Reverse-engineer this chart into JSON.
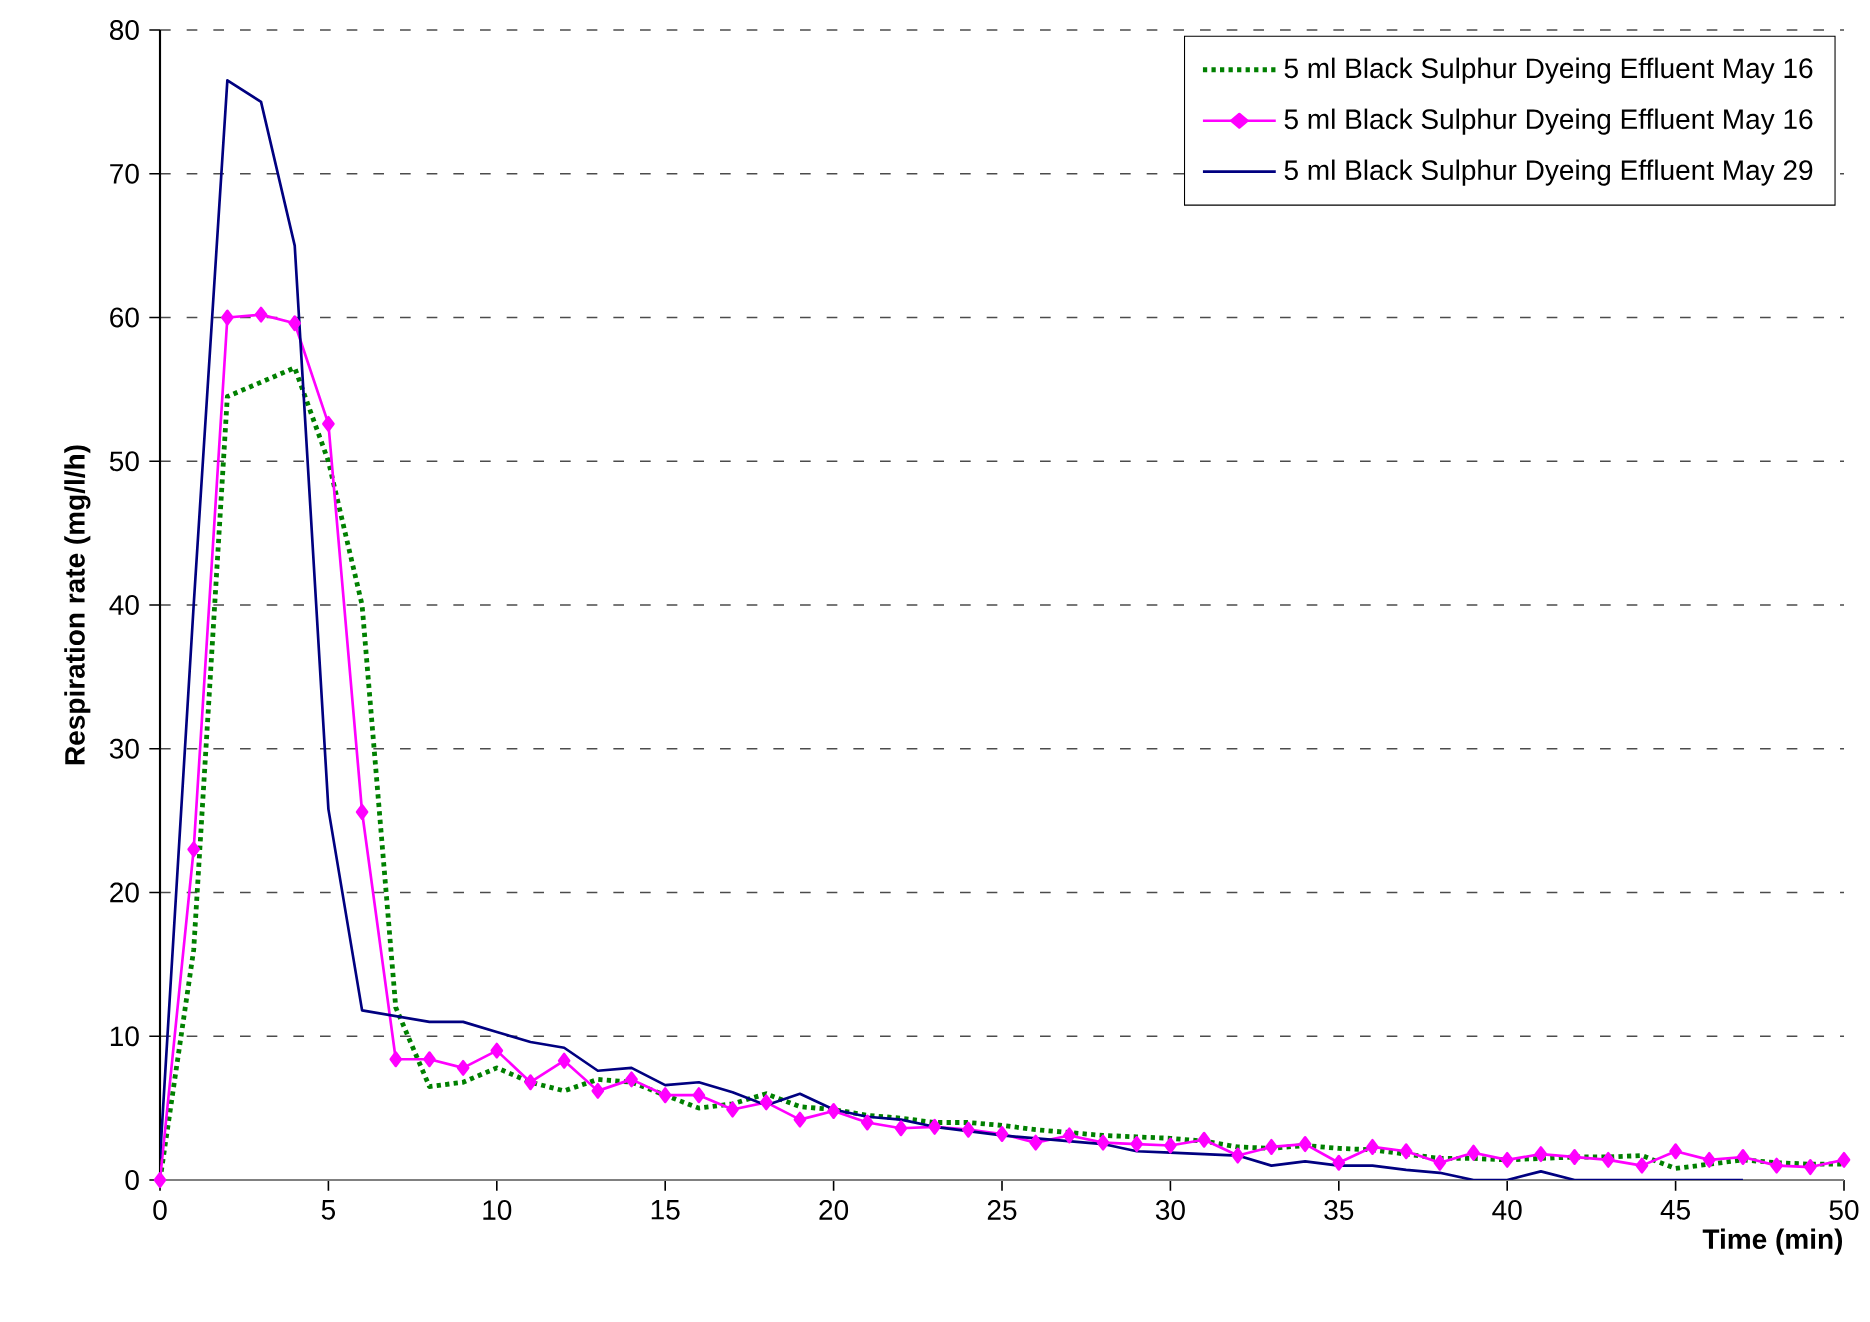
{
  "chart_data": {
    "type": "line",
    "xlabel": "Time (min)",
    "ylabel": "Respiration rate (mg/l/h)",
    "x": [
      0,
      1,
      2,
      3,
      4,
      5,
      6,
      7,
      8,
      9,
      10,
      11,
      12,
      13,
      14,
      15,
      16,
      17,
      18,
      19,
      20,
      21,
      22,
      23,
      24,
      25,
      26,
      27,
      28,
      29,
      30,
      31,
      32,
      33,
      34,
      35,
      36,
      37,
      38,
      39,
      40,
      41,
      42,
      43,
      44,
      45,
      46,
      47,
      48,
      49,
      50
    ],
    "series": [
      {
        "name": "5 ml Black Sulphur Dyeing Effluent May 16",
        "color": "#008000",
        "line_style": "dotted",
        "marker": "none",
        "values": [
          0,
          16,
          54.5,
          55.5,
          56.5,
          50,
          40,
          12,
          6.5,
          6.8,
          7.8,
          6.8,
          6.2,
          7,
          6.8,
          5.9,
          5,
          5.3,
          6,
          5.1,
          4.9,
          4.5,
          4.3,
          4,
          4,
          3.8,
          3.5,
          3.3,
          3.1,
          3,
          2.9,
          2.7,
          2.3,
          2.2,
          2.4,
          2.2,
          2.1,
          1.8,
          1.5,
          1.5,
          1.4,
          1.5,
          1.6,
          1.6,
          1.7,
          0.8,
          1.1,
          1.4,
          1.2,
          1.1,
          1.1
        ]
      },
      {
        "name": "5 ml Black Sulphur Dyeing Effluent May 16",
        "color": "#ff00ff",
        "line_style": "solid",
        "marker": "diamond",
        "values": [
          0,
          23,
          60,
          60.2,
          59.6,
          52.6,
          25.6,
          8.4,
          8.4,
          7.8,
          9,
          6.8,
          8.3,
          6.2,
          7,
          5.9,
          5.9,
          4.9,
          5.4,
          4.2,
          4.8,
          4,
          3.6,
          3.7,
          3.5,
          3.2,
          2.6,
          3.1,
          2.6,
          2.5,
          2.4,
          2.8,
          1.7,
          2.3,
          2.5,
          1.2,
          2.3,
          2,
          1.2,
          1.9,
          1.4,
          1.8,
          1.6,
          1.4,
          1,
          2,
          1.4,
          1.6,
          1,
          0.9,
          1.4
        ]
      },
      {
        "name": "5 ml Black Sulphur Dyeing Effluent May 29",
        "color": "#000080",
        "line_style": "solid",
        "marker": "none",
        "values": [
          1.5,
          40,
          76.5,
          75,
          65,
          25.8,
          11.8,
          11.4,
          11,
          11,
          10.3,
          9.6,
          9.2,
          7.6,
          7.8,
          6.6,
          6.8,
          6.1,
          5.2,
          6,
          4.9,
          4.4,
          4.2,
          3.7,
          3.4,
          3.1,
          2.9,
          2.7,
          2.5,
          2,
          1.9,
          1.8,
          1.7,
          1,
          1.3,
          1,
          1,
          0.7,
          0.5,
          0,
          0,
          0.6,
          0,
          0,
          0,
          0,
          0,
          0,
          null,
          null,
          null
        ]
      }
    ],
    "xlim": [
      0,
      50
    ],
    "ylim": [
      0,
      80
    ],
    "xticks": [
      0,
      5,
      10,
      15,
      20,
      25,
      30,
      35,
      40,
      45,
      50
    ],
    "yticks": [
      0,
      10,
      20,
      30,
      40,
      50,
      60,
      70,
      80
    ],
    "grid": "y",
    "legend": "top right"
  }
}
